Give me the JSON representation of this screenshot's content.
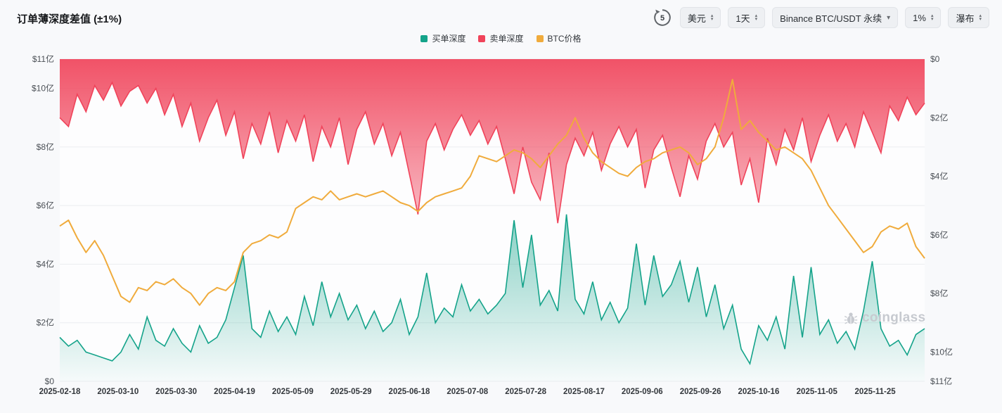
{
  "page": {
    "title": "订单薄深度差值 (±1%)"
  },
  "toolbar": {
    "refresh_countdown": "5",
    "currency_select": "美元",
    "interval_select": "1天",
    "market_select": "Binance BTC/USDT 永续",
    "depth_select": "1%",
    "view_select": "瀑布"
  },
  "legend": [
    {
      "label": "买单深度",
      "color": "#14a38a"
    },
    {
      "label": "卖单深度",
      "color": "#f0435a"
    },
    {
      "label": "BTC价格",
      "color": "#f0ab3c"
    }
  ],
  "watermark": "coinglass",
  "chart_data": {
    "type": "area",
    "title": "订单薄深度差值 (±1%)",
    "unit": "亿 (USD)",
    "ylim": [
      0,
      11
    ],
    "grid": true,
    "legend_position": "top-center",
    "y_axis_left": {
      "labels": [
        "$0",
        "$2亿",
        "$4亿",
        "$6亿",
        "$8亿",
        "$10亿",
        "$11亿"
      ],
      "values": [
        0,
        2,
        4,
        6,
        8,
        10,
        11
      ]
    },
    "y_axis_right": {
      "labels": [
        "$0",
        "$2亿",
        "$4亿",
        "$6亿",
        "$8亿",
        "$10亿",
        "$11亿"
      ],
      "values": [
        0,
        2,
        4,
        6,
        8,
        10,
        11
      ],
      "inverted": true
    },
    "x_tick_labels": [
      "2025-02-18",
      "2025-03-10",
      "2025-03-30",
      "2025-04-19",
      "2025-05-09",
      "2025-05-29",
      "2025-06-18",
      "2025-07-08",
      "2025-07-28",
      "2025-08-17",
      "2025-09-06",
      "2025-09-26",
      "2025-10-16",
      "2025-11-05",
      "2025-11-25"
    ],
    "x": [
      "2025-02-18",
      "2025-02-21",
      "2025-02-24",
      "2025-02-27",
      "2025-03-02",
      "2025-03-05",
      "2025-03-08",
      "2025-03-11",
      "2025-03-14",
      "2025-03-17",
      "2025-03-20",
      "2025-03-23",
      "2025-03-26",
      "2025-03-29",
      "2025-04-01",
      "2025-04-04",
      "2025-04-07",
      "2025-04-10",
      "2025-04-13",
      "2025-04-16",
      "2025-04-19",
      "2025-04-22",
      "2025-04-25",
      "2025-04-28",
      "2025-05-01",
      "2025-05-04",
      "2025-05-07",
      "2025-05-10",
      "2025-05-13",
      "2025-05-16",
      "2025-05-19",
      "2025-05-22",
      "2025-05-25",
      "2025-05-28",
      "2025-05-31",
      "2025-06-03",
      "2025-06-06",
      "2025-06-09",
      "2025-06-12",
      "2025-06-15",
      "2025-06-18",
      "2025-06-21",
      "2025-06-24",
      "2025-06-27",
      "2025-06-30",
      "2025-07-03",
      "2025-07-06",
      "2025-07-09",
      "2025-07-12",
      "2025-07-15",
      "2025-07-18",
      "2025-07-21",
      "2025-07-24",
      "2025-07-27",
      "2025-07-30",
      "2025-08-02",
      "2025-08-05",
      "2025-08-08",
      "2025-08-11",
      "2025-08-14",
      "2025-08-17",
      "2025-08-20",
      "2025-08-23",
      "2025-08-26",
      "2025-08-29",
      "2025-09-01",
      "2025-09-04",
      "2025-09-07",
      "2025-09-10",
      "2025-09-13",
      "2025-09-16",
      "2025-09-19",
      "2025-09-22",
      "2025-09-25",
      "2025-09-28",
      "2025-10-01",
      "2025-10-04",
      "2025-10-07",
      "2025-10-10",
      "2025-10-13",
      "2025-10-16",
      "2025-10-19",
      "2025-10-22",
      "2025-10-25",
      "2025-10-28",
      "2025-10-31",
      "2025-11-03",
      "2025-11-06",
      "2025-11-09",
      "2025-11-12",
      "2025-11-15",
      "2025-11-18",
      "2025-11-21",
      "2025-11-24",
      "2025-11-27",
      "2025-11-30",
      "2025-12-03",
      "2025-12-06",
      "2025-12-09",
      "2025-12-12"
    ],
    "series": [
      {
        "name": "买单深度",
        "type": "area",
        "axis": "left",
        "color": "#14a38a",
        "values": [
          1.5,
          1.2,
          1.4,
          1.0,
          0.9,
          0.8,
          0.7,
          1.0,
          1.6,
          1.1,
          2.2,
          1.4,
          1.2,
          1.8,
          1.3,
          1.0,
          1.9,
          1.3,
          1.5,
          2.1,
          3.2,
          4.3,
          1.8,
          1.5,
          2.4,
          1.7,
          2.2,
          1.6,
          2.9,
          1.9,
          3.4,
          2.2,
          3.0,
          2.1,
          2.6,
          1.8,
          2.4,
          1.7,
          2.0,
          2.8,
          1.6,
          2.2,
          3.7,
          2.0,
          2.5,
          2.2,
          3.3,
          2.4,
          2.8,
          2.3,
          2.6,
          3.0,
          5.5,
          3.2,
          5.0,
          2.6,
          3.1,
          2.4,
          5.7,
          2.8,
          2.3,
          3.4,
          2.1,
          2.7,
          2.0,
          2.5,
          4.7,
          2.6,
          4.3,
          2.9,
          3.3,
          4.1,
          2.7,
          3.9,
          2.2,
          3.3,
          1.8,
          2.6,
          1.1,
          0.6,
          1.9,
          1.4,
          2.2,
          1.1,
          3.6,
          1.5,
          3.9,
          1.6,
          2.1,
          1.3,
          1.7,
          1.1,
          2.4,
          4.1,
          1.8,
          1.2,
          1.4,
          0.9,
          1.6,
          1.8
        ]
      },
      {
        "name": "卖单深度",
        "type": "area-inverted-from-top",
        "axis": "right",
        "color": "#f0435a",
        "values": [
          2.0,
          2.3,
          1.2,
          1.8,
          0.9,
          1.4,
          0.8,
          1.6,
          1.1,
          0.9,
          1.5,
          1.0,
          1.9,
          1.2,
          2.3,
          1.5,
          2.8,
          2.0,
          1.4,
          2.6,
          1.8,
          3.4,
          2.2,
          2.9,
          1.8,
          3.2,
          2.1,
          2.8,
          1.9,
          3.5,
          2.3,
          3.0,
          2.0,
          3.6,
          2.4,
          1.8,
          2.9,
          2.2,
          3.3,
          2.5,
          3.9,
          5.3,
          2.8,
          2.2,
          3.1,
          2.4,
          1.9,
          2.6,
          2.1,
          2.9,
          2.3,
          3.4,
          4.6,
          3.0,
          4.2,
          4.8,
          3.2,
          5.6,
          3.6,
          2.7,
          3.3,
          2.5,
          3.8,
          2.9,
          2.3,
          3.0,
          2.4,
          4.4,
          3.1,
          2.6,
          3.7,
          4.7,
          3.3,
          4.1,
          2.8,
          2.2,
          3.0,
          2.5,
          4.3,
          3.4,
          4.9,
          2.7,
          3.6,
          2.4,
          3.1,
          2.0,
          3.5,
          2.6,
          1.9,
          2.8,
          2.2,
          3.0,
          1.8,
          2.5,
          3.2,
          1.6,
          2.1,
          1.3,
          1.9,
          1.5
        ]
      },
      {
        "name": "BTC价格",
        "type": "line",
        "axis": "left-equivalent (price axis unlabeled)",
        "color": "#f0ab3c",
        "values": [
          5.3,
          5.5,
          4.9,
          4.4,
          4.8,
          4.3,
          3.6,
          2.9,
          2.7,
          3.2,
          3.1,
          3.4,
          3.3,
          3.5,
          3.2,
          3.0,
          2.6,
          3.0,
          3.2,
          3.1,
          3.4,
          4.4,
          4.7,
          4.8,
          5.0,
          4.9,
          5.1,
          5.9,
          6.1,
          6.3,
          6.2,
          6.5,
          6.2,
          6.3,
          6.4,
          6.3,
          6.4,
          6.5,
          6.3,
          6.1,
          6.0,
          5.8,
          6.1,
          6.3,
          6.4,
          6.5,
          6.6,
          7.0,
          7.7,
          7.6,
          7.5,
          7.7,
          7.9,
          7.8,
          7.6,
          7.3,
          7.7,
          8.1,
          8.4,
          9.0,
          8.3,
          7.8,
          7.5,
          7.3,
          7.1,
          7.0,
          7.3,
          7.5,
          7.6,
          7.8,
          7.9,
          8.0,
          7.8,
          7.4,
          7.6,
          8.0,
          9.0,
          10.3,
          8.6,
          8.9,
          8.5,
          8.2,
          7.9,
          8.0,
          7.8,
          7.6,
          7.2,
          6.6,
          6.0,
          5.6,
          5.2,
          4.8,
          4.4,
          4.6,
          5.1,
          5.3,
          5.2,
          5.4,
          4.6,
          4.2
        ]
      }
    ]
  }
}
